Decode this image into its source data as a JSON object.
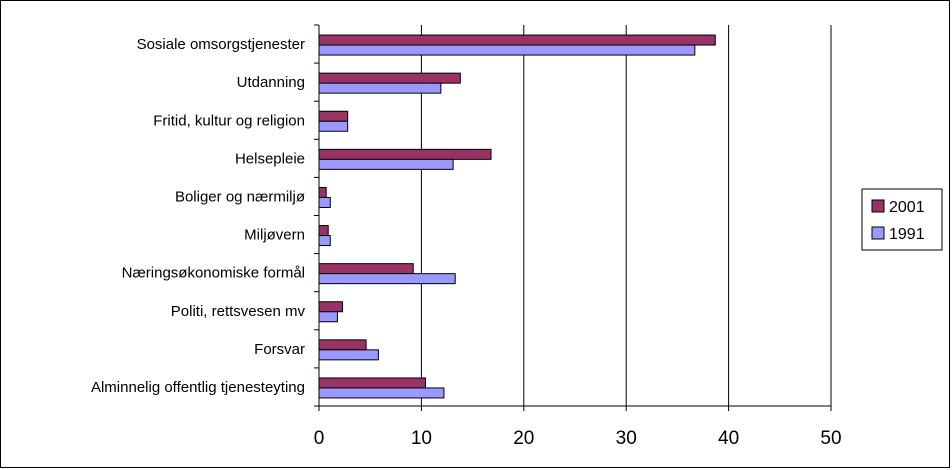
{
  "chart_data": {
    "type": "bar",
    "orientation": "horizontal",
    "categories": [
      "Sosiale omsorgstjenester",
      "Utdanning",
      "Fritid, kultur og religion",
      "Helsepleie",
      "Boliger og nærmiljø",
      "Miljøvern",
      "Næringsøkonomiske formål",
      "Politi, rettsvesen mv",
      "Forsvar",
      "Alminnelig offentlig tjenesteyting"
    ],
    "series": [
      {
        "name": "2001",
        "color": "#993366",
        "values": [
          38.7,
          13.8,
          2.8,
          16.8,
          0.7,
          0.9,
          9.2,
          2.3,
          4.6,
          10.4
        ]
      },
      {
        "name": "1991",
        "color": "#9999ff",
        "values": [
          36.7,
          11.9,
          2.8,
          13.1,
          1.1,
          1.1,
          13.3,
          1.8,
          5.8,
          12.2
        ]
      }
    ],
    "xlim": [
      0,
      50
    ],
    "xticks": [
      "0",
      "10",
      "20",
      "30",
      "40",
      "50"
    ],
    "grid": true,
    "legend_position": "right"
  }
}
